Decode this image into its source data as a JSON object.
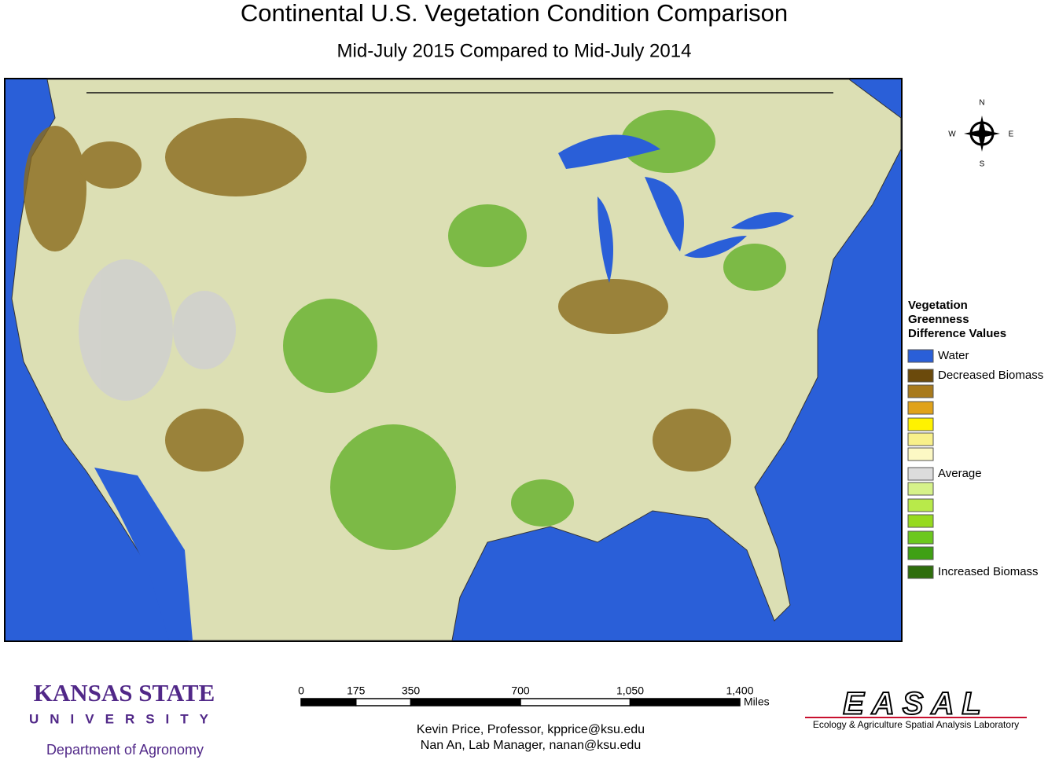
{
  "header": {
    "title": "Continental U.S. Vegetation Condition Comparison",
    "subtitle": "Mid-July 2015 Compared to Mid-July 2014"
  },
  "compass": {
    "north": "N",
    "south": "S",
    "east": "E",
    "west": "W"
  },
  "legend": {
    "title": [
      "Vegetation",
      "Greenness",
      "Difference Values"
    ],
    "items": [
      {
        "color": "#2a5fd8",
        "label": "Water"
      },
      {
        "color": "#6b4a0c",
        "label": "Decreased Biomass"
      },
      {
        "color": "#a87a1c"
      },
      {
        "color": "#e0a21a"
      },
      {
        "color": "#fff200"
      },
      {
        "color": "#f8f08a"
      },
      {
        "color": "#fcf8c4"
      },
      {
        "color": "#dcdcdc",
        "label": "Average"
      },
      {
        "color": "#d6f28a"
      },
      {
        "color": "#b8ea4a"
      },
      {
        "color": "#96da1e"
      },
      {
        "color": "#6cc81e"
      },
      {
        "color": "#3fa014"
      },
      {
        "color": "#2e6e0c",
        "label": "Increased Biomass"
      }
    ]
  },
  "scale": {
    "unit": "Miles",
    "ticks": [
      0,
      175,
      350,
      700,
      {
        "value": 1050,
        "label": "1,050"
      },
      {
        "value": 1400,
        "label": "1,400"
      }
    ]
  },
  "logos": {
    "university_name": "KANSAS STATE",
    "university_sub": "UNIVERSITY",
    "department": "Department of Agronomy",
    "lab_name": "EASAL",
    "lab_full": "Ecology & Agriculture Spatial Analysis Laboratory"
  },
  "credits": [
    "Kevin Price, Professor, kpprice@ksu.edu",
    "Nan An, Lab Manager, nanan@ksu.edu"
  ]
}
